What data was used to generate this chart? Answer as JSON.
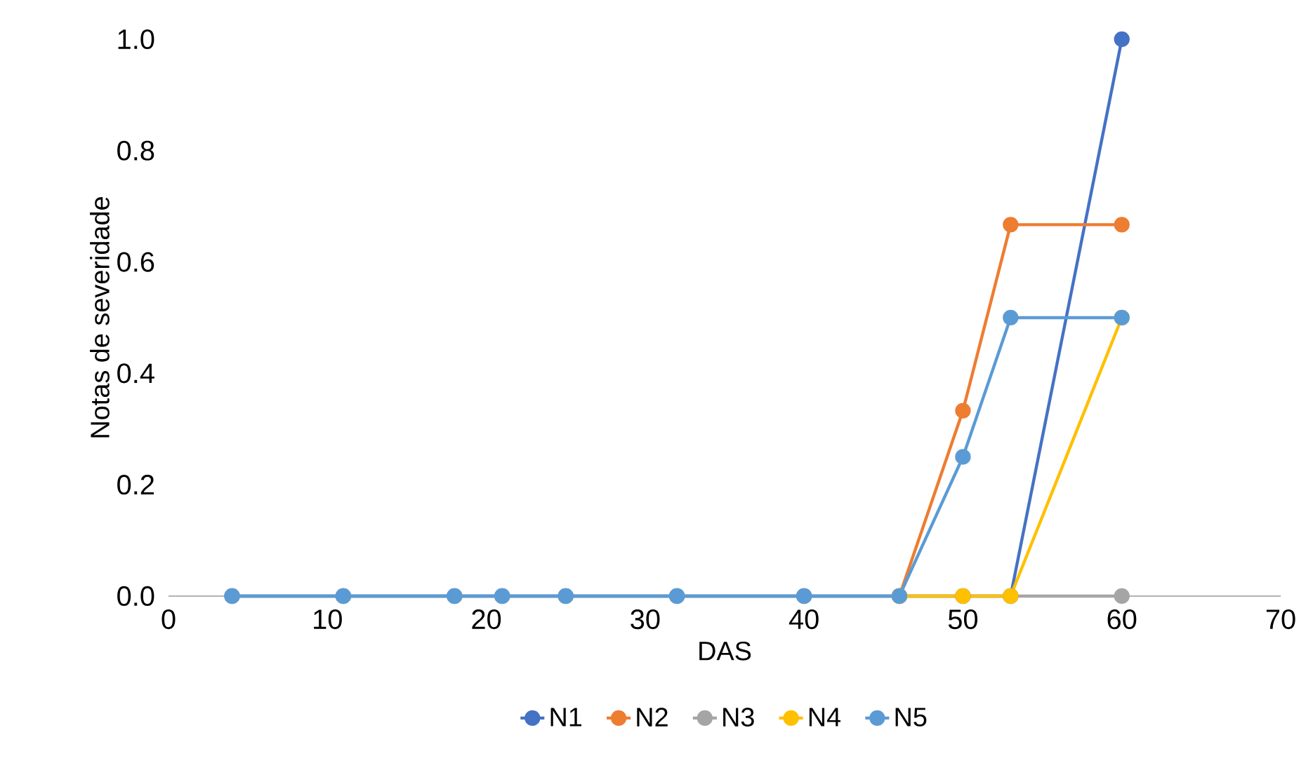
{
  "chart_data": {
    "type": "line",
    "xlabel": "DAS",
    "ylabel": "Notas de severidade",
    "x": [
      4,
      11,
      18,
      21,
      25,
      32,
      40,
      46,
      50,
      53,
      60
    ],
    "series": [
      {
        "name": "N1",
        "color": "#4472c4",
        "values": [
          0,
          0,
          0,
          0,
          0,
          0,
          0,
          0,
          0,
          0,
          1.0
        ]
      },
      {
        "name": "N2",
        "color": "#ed7d31",
        "values": [
          null,
          null,
          null,
          null,
          null,
          null,
          null,
          0,
          0.333,
          0.667,
          0.667
        ]
      },
      {
        "name": "N3",
        "color": "#a5a5a5",
        "values": [
          0,
          0,
          0,
          0,
          0,
          0,
          0,
          0,
          0,
          0,
          0
        ]
      },
      {
        "name": "N4",
        "color": "#ffc000",
        "values": [
          null,
          null,
          null,
          null,
          null,
          null,
          null,
          0,
          0,
          0,
          0.5
        ]
      },
      {
        "name": "N5",
        "color": "#5b9bd5",
        "values": [
          0,
          0,
          0,
          0,
          0,
          0,
          0,
          0,
          0.25,
          0.5,
          0.5
        ]
      }
    ],
    "xlim": [
      0,
      70
    ],
    "xticks": [
      0,
      10,
      20,
      30,
      40,
      50,
      60,
      70
    ],
    "ylim": [
      0,
      1.0
    ],
    "yticks": [
      {
        "value": 0,
        "label": "0.0"
      },
      {
        "value": 0.2,
        "label": "0.2"
      },
      {
        "value": 0.4,
        "label": "0.4"
      },
      {
        "value": 0.6,
        "label": "0.6"
      },
      {
        "value": 0.8,
        "label": "0.8"
      },
      {
        "value": 1.0,
        "label": "1.0"
      }
    ],
    "grid": false,
    "legend": "bottom",
    "marker": "circle",
    "line_style": "solid"
  }
}
